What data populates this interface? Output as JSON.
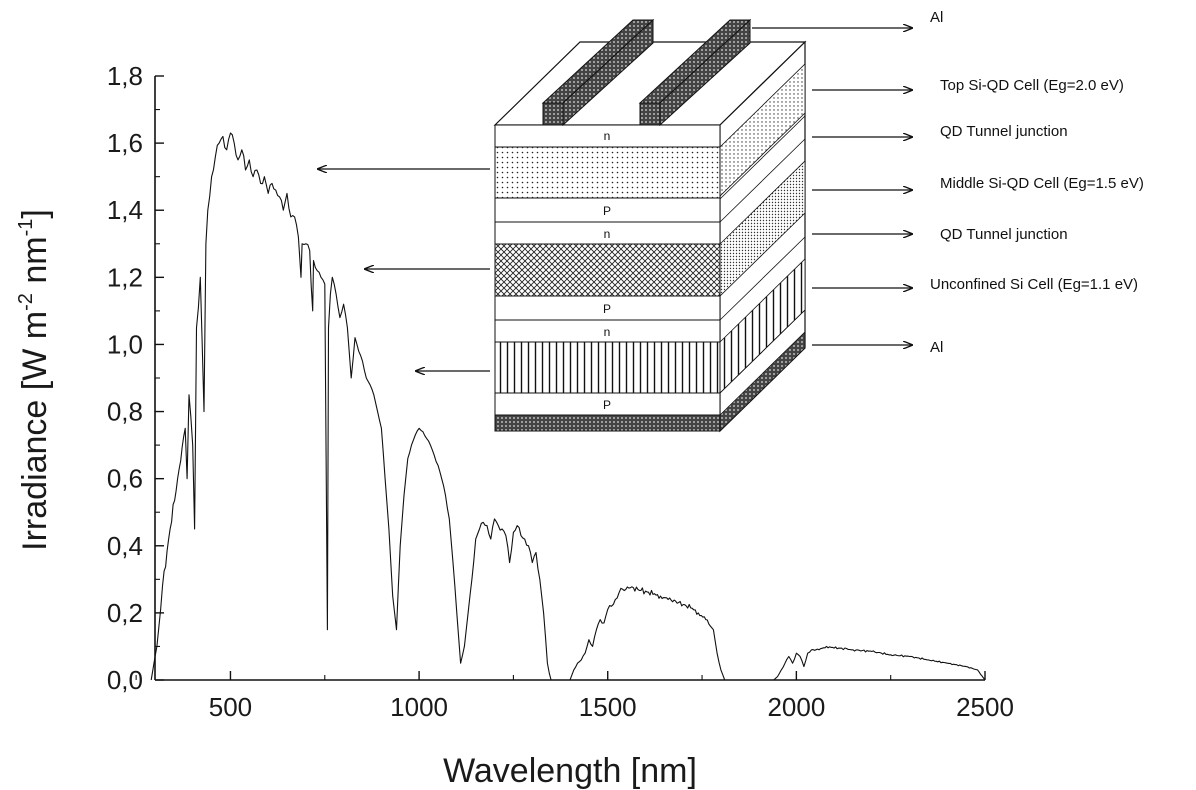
{
  "chart_data": {
    "type": "line",
    "title": "",
    "xlabel": "Wavelength [nm]",
    "ylabel": {
      "base": "Irradiance [W m",
      "exp1": "-2",
      "mid": " nm",
      "exp2": "-1",
      "end": "]"
    },
    "xlim": [
      300,
      2500
    ],
    "ylim": [
      0.0,
      1.8
    ],
    "xticks": [
      500,
      1000,
      1500,
      2000,
      2500
    ],
    "xtick_labels": [
      "500",
      "1000",
      "1500",
      "2000",
      "2500"
    ],
    "yticks": [
      0.0,
      0.2,
      0.4,
      0.6,
      0.8,
      1.0,
      1.2,
      1.4,
      1.6,
      1.8
    ],
    "ytick_labels": [
      "0,0",
      "0,2",
      "0,4",
      "0,6",
      "0,8",
      "1,0",
      "1,2",
      "1,4",
      "1,6",
      "1,8"
    ],
    "grid": false,
    "series": [
      {
        "color": "#111111",
        "x": [
          290,
          305,
          320,
          340,
          360,
          380,
          385,
          390,
          400,
          405,
          410,
          420,
          430,
          435,
          440,
          450,
          460,
          470,
          480,
          490,
          500,
          510,
          520,
          530,
          540,
          550,
          560,
          570,
          580,
          590,
          600,
          610,
          620,
          630,
          640,
          650,
          660,
          670,
          680,
          687,
          690,
          700,
          710,
          718,
          720,
          730,
          740,
          750,
          757,
          760,
          765,
          770,
          780,
          790,
          800,
          810,
          820,
          830,
          840,
          850,
          860,
          870,
          880,
          890,
          900,
          910,
          920,
          930,
          940,
          950,
          960,
          970,
          980,
          990,
          1000,
          1010,
          1020,
          1030,
          1040,
          1050,
          1060,
          1070,
          1080,
          1090,
          1100,
          1110,
          1120,
          1130,
          1140,
          1150,
          1160,
          1170,
          1180,
          1190,
          1200,
          1210,
          1220,
          1230,
          1240,
          1250,
          1260,
          1270,
          1280,
          1290,
          1300,
          1310,
          1320,
          1330,
          1340,
          1345,
          1350,
          1360,
          1400,
          1410,
          1420,
          1430,
          1440,
          1450,
          1460,
          1470,
          1480,
          1490,
          1500,
          1510,
          1520,
          1530,
          1540,
          1560,
          1580,
          1600,
          1620,
          1640,
          1660,
          1680,
          1700,
          1720,
          1740,
          1760,
          1780,
          1790,
          1800,
          1810,
          1940,
          1950,
          1960,
          1970,
          1980,
          1990,
          2000,
          2010,
          2020,
          2030,
          2040,
          2060,
          2080,
          2100,
          2120,
          2150,
          2200,
          2250,
          2300,
          2350,
          2400,
          2450,
          2480,
          2500
        ],
        "values": [
          0.0,
          0.1,
          0.28,
          0.45,
          0.6,
          0.75,
          0.6,
          0.85,
          0.7,
          0.45,
          1.05,
          1.2,
          0.8,
          1.3,
          1.4,
          1.5,
          1.56,
          1.6,
          1.62,
          1.58,
          1.63,
          1.6,
          1.55,
          1.58,
          1.52,
          1.55,
          1.5,
          1.52,
          1.48,
          1.5,
          1.45,
          1.48,
          1.46,
          1.44,
          1.4,
          1.45,
          1.38,
          1.38,
          1.32,
          1.2,
          1.3,
          1.3,
          1.28,
          1.1,
          1.25,
          1.22,
          1.2,
          1.18,
          0.15,
          1.05,
          1.15,
          1.2,
          1.15,
          1.08,
          1.12,
          1.05,
          0.9,
          1.02,
          0.98,
          0.95,
          0.9,
          0.88,
          0.85,
          0.8,
          0.75,
          0.6,
          0.45,
          0.25,
          0.15,
          0.4,
          0.55,
          0.66,
          0.7,
          0.73,
          0.75,
          0.74,
          0.72,
          0.7,
          0.67,
          0.64,
          0.6,
          0.55,
          0.48,
          0.35,
          0.2,
          0.05,
          0.1,
          0.2,
          0.3,
          0.42,
          0.45,
          0.47,
          0.46,
          0.42,
          0.48,
          0.46,
          0.45,
          0.43,
          0.35,
          0.44,
          0.46,
          0.43,
          0.42,
          0.4,
          0.35,
          0.38,
          0.3,
          0.2,
          0.05,
          0.02,
          0.0,
          0.0,
          0.0,
          0.03,
          0.05,
          0.06,
          0.08,
          0.12,
          0.1,
          0.15,
          0.18,
          0.17,
          0.21,
          0.22,
          0.24,
          0.26,
          0.27,
          0.275,
          0.27,
          0.265,
          0.255,
          0.25,
          0.24,
          0.235,
          0.225,
          0.215,
          0.2,
          0.18,
          0.15,
          0.08,
          0.03,
          0.0,
          0.0,
          0.01,
          0.03,
          0.05,
          0.07,
          0.05,
          0.08,
          0.07,
          0.04,
          0.08,
          0.09,
          0.09,
          0.1,
          0.095,
          0.095,
          0.09,
          0.085,
          0.075,
          0.07,
          0.06,
          0.05,
          0.04,
          0.03,
          0.0
        ]
      }
    ]
  },
  "diagram": {
    "layer_letters": {
      "top_n": "n",
      "mid_p": "P",
      "mid_n": "n",
      "low_p": "P",
      "low_n": "n",
      "bottom_p": "P"
    },
    "labels": {
      "al_top": "Al",
      "top_cell": "Top Si-QD Cell (Eg=2.0 eV)",
      "tunnel_1": "QD Tunnel junction",
      "middle_cell": "Middle Si-QD Cell (Eg=1.5 eV)",
      "tunnel_2": "QD Tunnel junction",
      "unconfined_cell": "Unconfined Si Cell (Eg=1.1 eV)",
      "al_bottom": "Al"
    }
  }
}
